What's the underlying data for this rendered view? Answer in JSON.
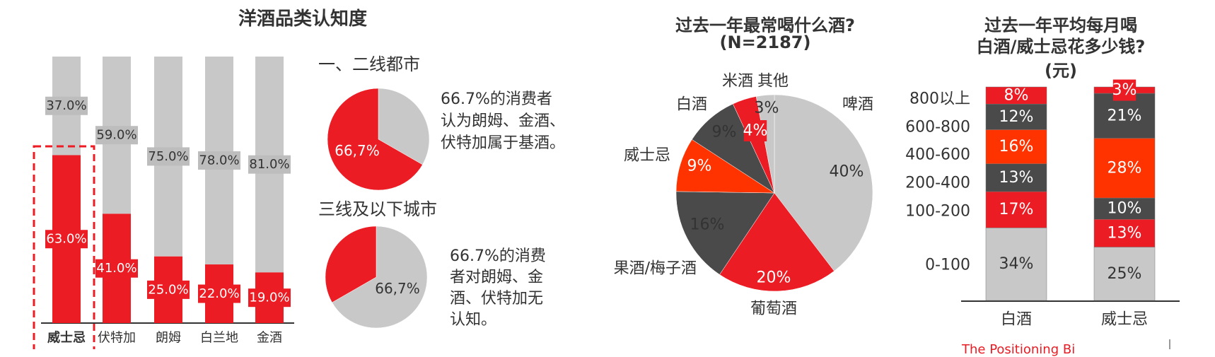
{
  "chart_data": [
    {
      "type": "bar",
      "stacked": true,
      "title": "洋酒品类认知度",
      "categories": [
        "威士忌",
        "伏特加",
        "朗姆",
        "白兰地",
        "金酒"
      ],
      "highlighted_category": "威士忌",
      "series": [
        {
          "values": [
            63.0,
            41.0,
            25.0,
            22.0,
            19.0
          ],
          "labels": [
            "63.0%",
            "41.0%",
            "25.0%",
            "22.0%",
            "19.0%"
          ],
          "color": "#ec1c24"
        },
        {
          "values": [
            37.0,
            59.0,
            75.0,
            78.0,
            81.0
          ],
          "labels": [
            "37.0%",
            "59.0%",
            "75.0%",
            "78.0%",
            "81.0%"
          ],
          "color": "#c8c8c8"
        }
      ],
      "ylim": [
        0,
        100
      ]
    },
    {
      "type": "pie",
      "title": "一、二线都市",
      "slices": [
        {
          "value": 33.3,
          "color": "#c8c8c8",
          "label": ""
        },
        {
          "value": 66.7,
          "color": "#ec1c24",
          "label": "66,7%"
        }
      ],
      "note": [
        "66.7%的消费者",
        "认为朗姆、金酒、",
        "伏特加属于基酒。"
      ]
    },
    {
      "type": "pie",
      "title": "三线及以下城市",
      "slices": [
        {
          "value": 66.7,
          "color": "#c8c8c8",
          "label": "66,7%"
        },
        {
          "value": 33.3,
          "color": "#ec1c24",
          "label": ""
        }
      ],
      "note": [
        "66.7%的消费",
        "者对朗姆、金",
        "酒、伏特加无",
        "认知。"
      ]
    },
    {
      "type": "pie",
      "title": "过去一年最常喝什么酒?",
      "subtitle": "(N=2187)",
      "slices": [
        {
          "name": "啤酒",
          "value": 40,
          "label": "40%",
          "color": "#c8c8c8"
        },
        {
          "name": "葡萄酒",
          "value": 20,
          "label": "20%",
          "color": "#ec1c24"
        },
        {
          "name": "果酒/梅子酒",
          "value": 16,
          "label": "16%",
          "color": "#4a4a4a"
        },
        {
          "name": "威士忌",
          "value": 9,
          "label": "9%",
          "color": "#ff3300"
        },
        {
          "name": "白酒",
          "value": 9,
          "label": "9%",
          "color": "#4a4a4a"
        },
        {
          "name": "米酒",
          "value": 4,
          "label": "4%",
          "color": "#ec1c24"
        },
        {
          "name": "其他",
          "value": 3,
          "label": "3%",
          "color": "#c8c8c8"
        }
      ]
    },
    {
      "type": "bar",
      "stacked": true,
      "title": [
        "过去一年平均每月喝",
        "白酒/威士忌花多少钱?",
        "(元)"
      ],
      "categories": [
        "白酒",
        "威士忌"
      ],
      "series": [
        {
          "name": "0-100",
          "values": [
            34,
            25
          ],
          "color": "#c8c8c8"
        },
        {
          "name": "100-200",
          "values": [
            17,
            13
          ],
          "color": "#ec1c24"
        },
        {
          "name": "200-400",
          "values": [
            13,
            10
          ],
          "color": "#4a4a4a"
        },
        {
          "name": "400-600",
          "values": [
            16,
            28
          ],
          "color": "#ff3300"
        },
        {
          "name": "600-800",
          "values": [
            12,
            21
          ],
          "color": "#4a4a4a"
        },
        {
          "name": "800以上",
          "values": [
            8,
            3
          ],
          "color": "#ec1c24"
        }
      ],
      "ylim": [
        0,
        100
      ]
    }
  ],
  "footer": {
    "text": "The Positioning Bi"
  }
}
